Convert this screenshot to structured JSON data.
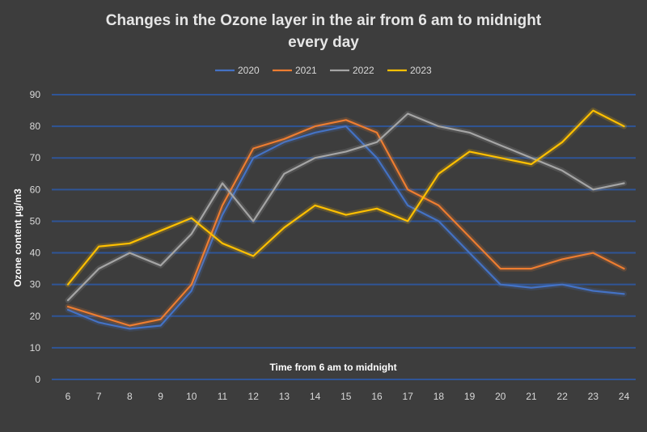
{
  "chart_data": {
    "type": "line",
    "title_line1": "Changes in the Ozone layer in the air from 6 am to midnight",
    "title_line2": "every day",
    "xlabel": "Time from 6 am to midnight",
    "ylabel": "Ozone content µg/m3",
    "x": [
      6,
      7,
      8,
      9,
      10,
      11,
      12,
      13,
      14,
      15,
      16,
      17,
      18,
      19,
      20,
      21,
      22,
      23,
      24
    ],
    "ylim": [
      0,
      90
    ],
    "yticks": [
      0,
      10,
      20,
      30,
      40,
      50,
      60,
      70,
      80,
      90
    ],
    "grid": true,
    "legend_position": "top",
    "series": [
      {
        "name": "2020",
        "color": "#4472c4",
        "values": [
          22,
          18,
          16,
          17,
          28,
          52,
          70,
          75,
          78,
          80,
          70,
          55,
          50,
          40,
          30,
          29,
          30,
          28,
          27
        ]
      },
      {
        "name": "2021",
        "color": "#ed7d31",
        "values": [
          23,
          20,
          17,
          19,
          30,
          55,
          73,
          76,
          80,
          82,
          78,
          60,
          55,
          45,
          35,
          35,
          38,
          40,
          35
        ]
      },
      {
        "name": "2022",
        "color": "#a5a5a5",
        "values": [
          25,
          35,
          40,
          36,
          46,
          62,
          50,
          65,
          70,
          72,
          75,
          84,
          80,
          78,
          74,
          70,
          66,
          60,
          62
        ]
      },
      {
        "name": "2023",
        "color": "#ffc000",
        "values": [
          30,
          42,
          43,
          47,
          51,
          43,
          39,
          48,
          55,
          52,
          54,
          50,
          65,
          72,
          70,
          68,
          75,
          85,
          80
        ]
      }
    ]
  }
}
